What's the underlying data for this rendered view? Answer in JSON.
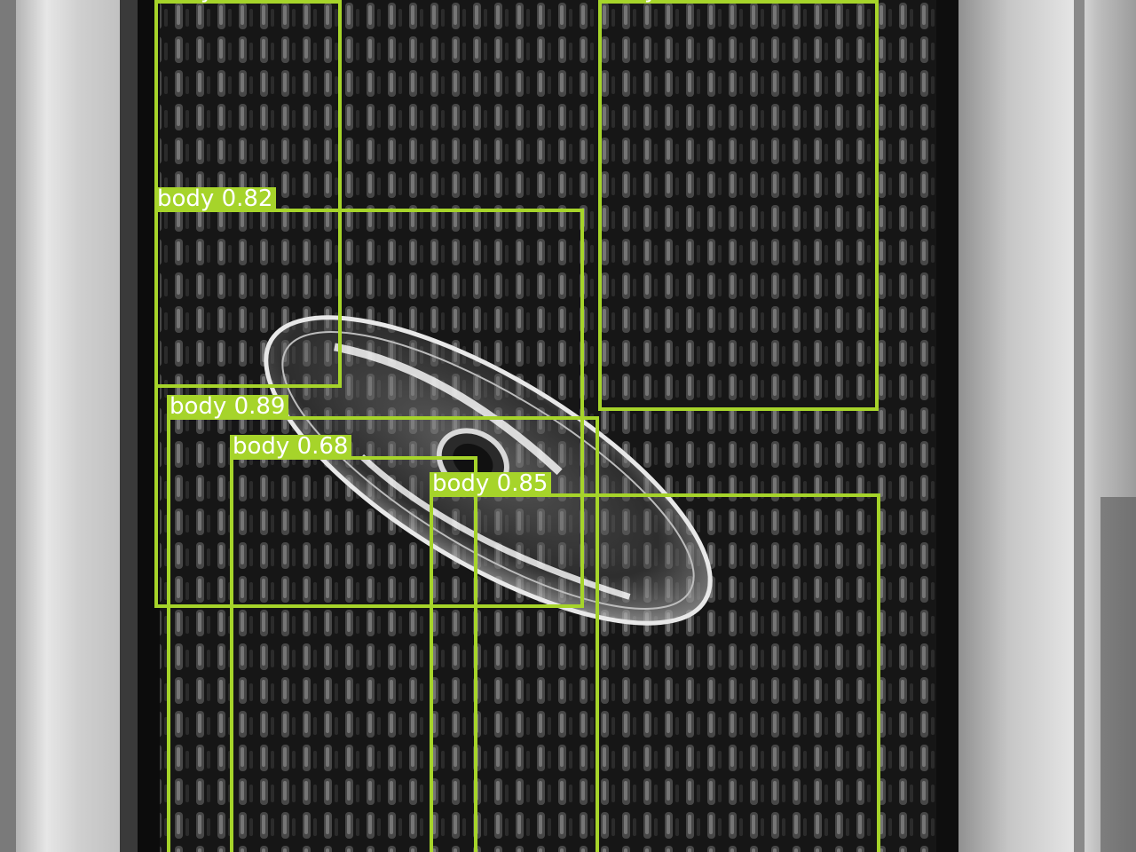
{
  "image": {
    "description_tag": "grayscale-conveyor-photo",
    "box_color": "#a6d42a",
    "label_text_color": "#ffffff"
  },
  "detections": [
    {
      "label": "body",
      "score": ""
    },
    {
      "label": "body",
      "score": ""
    },
    {
      "label": "body",
      "score": "0.82"
    },
    {
      "label": "body",
      "score": "0.89"
    },
    {
      "label": "body",
      "score": "0.68"
    },
    {
      "label": "body",
      "score": "0.85"
    }
  ]
}
